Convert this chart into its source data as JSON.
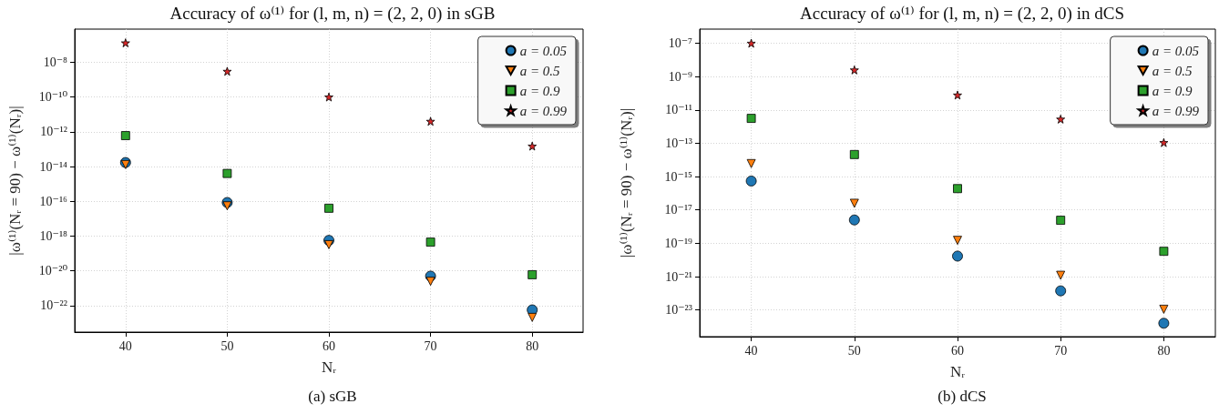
{
  "chart_data": [
    {
      "type": "scatter",
      "title": "Accuracy of ω⁽¹⁾ for (l, m, n) = (2, 2, 0) in sGB",
      "xlabel": "Nᵣ",
      "ylabel": "|ω⁽¹⁾(Nᵣ = 90) − ω⁽¹⁾(Nᵣ)|",
      "annotations": [
        "(a) sGB"
      ],
      "x": [
        40,
        50,
        60,
        70,
        80
      ],
      "log": "y",
      "grid": true,
      "legend": "top right",
      "xlim": [
        35,
        85
      ],
      "xticks": [
        40,
        50,
        60,
        70,
        80
      ],
      "ylim": [
        3e-24,
        8e-07
      ],
      "yticks": [
        {
          "value": 1e-22,
          "label": "10⁻²²"
        },
        {
          "value": 1e-20,
          "label": "10⁻²⁰"
        },
        {
          "value": 1e-18,
          "label": "10⁻¹⁸"
        },
        {
          "value": 1e-16,
          "label": "10⁻¹⁶"
        },
        {
          "value": 1e-14,
          "label": "10⁻¹⁴"
        },
        {
          "value": 1e-12,
          "label": "10⁻¹²"
        },
        {
          "value": 1e-10,
          "label": "10⁻¹⁰"
        },
        {
          "value": 1e-08,
          "label": "10⁻⁸"
        }
      ],
      "series": [
        {
          "name": "a = 0.05",
          "color": "#1f77b4",
          "marker": "circle",
          "values": [
            1.7e-14,
            8.5e-17,
            5.7e-19,
            5e-21,
            5.7e-23
          ]
        },
        {
          "name": "a = 0.5",
          "color": "#ff7f0e",
          "marker": "triangle",
          "values": [
            1.3e-14,
            5.5e-17,
            3.2e-19,
            2.5e-21,
            2.1e-23
          ]
        },
        {
          "name": "a = 0.9",
          "color": "#2ca02c",
          "marker": "square",
          "values": [
            6e-13,
            4e-15,
            4e-17,
            4.5e-19,
            6e-21
          ]
        },
        {
          "name": "a = 0.99",
          "color": "#d62728",
          "marker": "star",
          "values": [
            1.3e-07,
            3e-09,
            1e-10,
            4e-12,
            1.5e-13
          ]
        }
      ]
    },
    {
      "type": "scatter",
      "title": "Accuracy of ω⁽¹⁾ for (l, m, n) = (2, 2, 0) in dCS",
      "xlabel": "Nᵣ",
      "ylabel": "|ω⁽¹⁾(Nᵣ = 90) − ω⁽¹⁾(Nᵣ)|",
      "annotations": [
        "(b) dCS"
      ],
      "x": [
        40,
        50,
        60,
        70,
        80
      ],
      "log": "y",
      "grid": true,
      "legend": "top right",
      "xlim": [
        35,
        85
      ],
      "xticks": [
        40,
        50,
        60,
        70,
        80
      ],
      "ylim": [
        2.5e-25,
        7e-07
      ],
      "yticks": [
        {
          "value": 1e-23,
          "label": "10⁻²³"
        },
        {
          "value": 1e-21,
          "label": "10⁻²¹"
        },
        {
          "value": 1e-19,
          "label": "10⁻¹⁹"
        },
        {
          "value": 1e-17,
          "label": "10⁻¹⁷"
        },
        {
          "value": 1e-15,
          "label": "10⁻¹⁵"
        },
        {
          "value": 1e-13,
          "label": "10⁻¹³"
        },
        {
          "value": 1e-11,
          "label": "10⁻¹¹"
        },
        {
          "value": 1e-09,
          "label": "10⁻⁹"
        },
        {
          "value": 1e-07,
          "label": "10⁻⁷"
        }
      ],
      "series": [
        {
          "name": "a = 0.05",
          "color": "#1f77b4",
          "marker": "circle",
          "values": [
            5.4e-16,
            2.5e-18,
            1.7e-20,
            1.4e-22,
            1.6e-24
          ]
        },
        {
          "name": "a = 0.5",
          "color": "#ff7f0e",
          "marker": "triangle",
          "values": [
            6e-15,
            2.5e-17,
            1.5e-19,
            1.2e-21,
            1.1e-23
          ]
        },
        {
          "name": "a = 0.9",
          "color": "#2ca02c",
          "marker": "square",
          "values": [
            3.1e-12,
            2.1e-14,
            1.9e-16,
            2.4e-18,
            3.3e-20
          ]
        },
        {
          "name": "a = 0.99",
          "color": "#d62728",
          "marker": "star",
          "values": [
            1e-07,
            2.5e-09,
            7.8e-11,
            2.8e-12,
            1.1e-13
          ]
        }
      ]
    }
  ]
}
